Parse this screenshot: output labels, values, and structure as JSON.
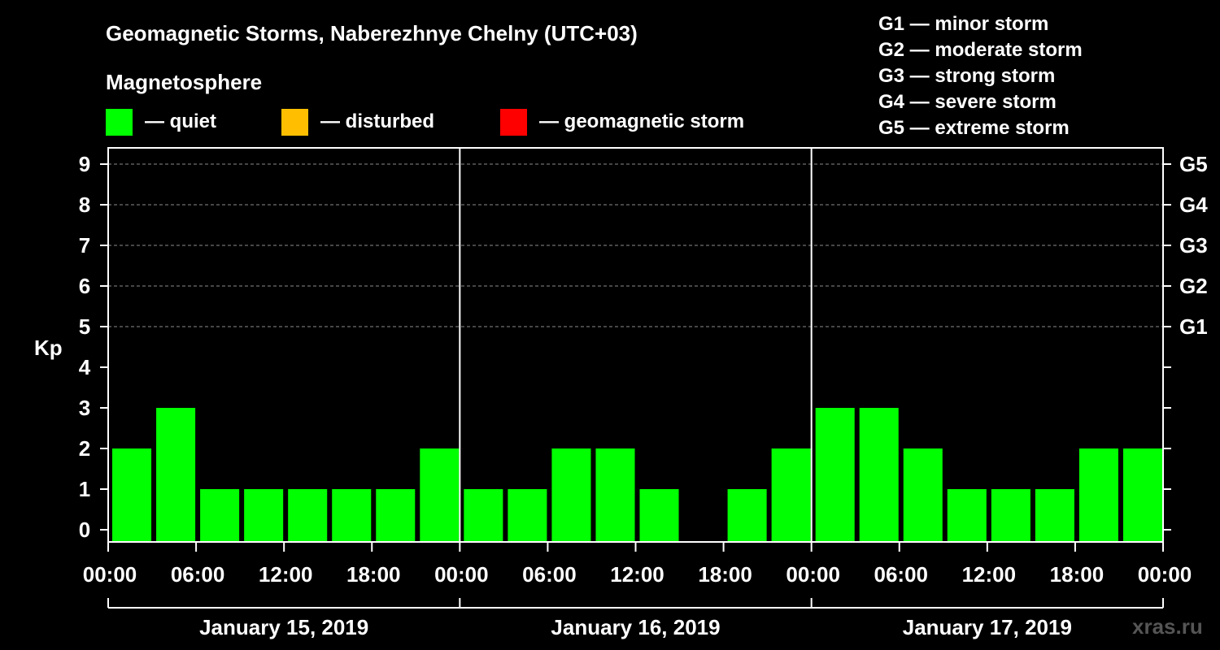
{
  "chart_data": {
    "type": "bar",
    "title": "Geomagnetic Storms, Naberezhnye Chelny (UTC+03)",
    "legend_title": "Magnetosphere",
    "legend": [
      {
        "label": "— quiet",
        "color": "#00ff00"
      },
      {
        "label": "— disturbed",
        "color": "#ffbf00"
      },
      {
        "label": "— geomagnetic storm",
        "color": "#ff0000"
      }
    ],
    "storm_scale": [
      "G1 — minor storm",
      "G2 — moderate storm",
      "G3 — strong storm",
      "G4 — severe storm",
      "G5 — extreme storm"
    ],
    "ylabel": "Kp",
    "ylim": [
      0,
      9
    ],
    "y_ticks": [
      "0",
      "1",
      "2",
      "3",
      "4",
      "5",
      "6",
      "7",
      "8",
      "9"
    ],
    "right_ticks": [
      {
        "kp": 5,
        "label": "G1"
      },
      {
        "kp": 6,
        "label": "G2"
      },
      {
        "kp": 7,
        "label": "G3"
      },
      {
        "kp": 8,
        "label": "G4"
      },
      {
        "kp": 9,
        "label": "G5"
      }
    ],
    "time_ticks": [
      "00:00",
      "06:00",
      "12:00",
      "18:00",
      "00:00",
      "06:00",
      "12:00",
      "18:00",
      "00:00",
      "06:00",
      "12:00",
      "18:00",
      "00:00"
    ],
    "days": [
      {
        "label": "January 15, 2019",
        "values": [
          2,
          3,
          1,
          1,
          1,
          1,
          1,
          2
        ]
      },
      {
        "label": "January 16, 2019",
        "values": [
          1,
          1,
          2,
          2,
          1,
          0,
          1,
          2
        ]
      },
      {
        "label": "January 17, 2019",
        "values": [
          3,
          3,
          2,
          1,
          1,
          1,
          2,
          2
        ]
      }
    ],
    "watermark": "xras.ru"
  }
}
